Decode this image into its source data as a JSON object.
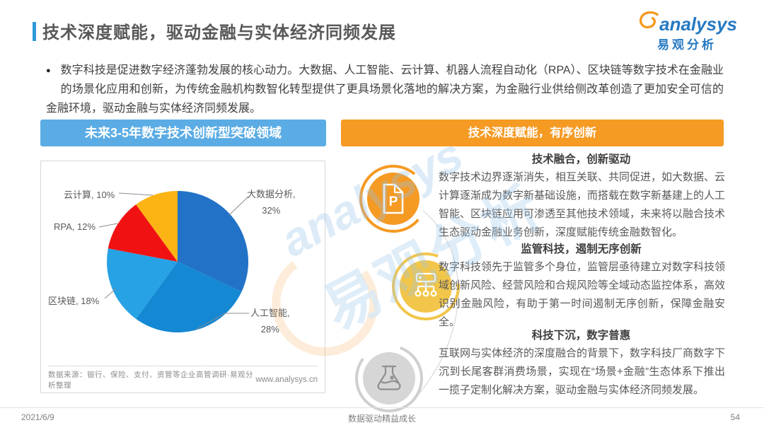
{
  "header": {
    "title": "技术深度赋能，驱动金融与实体经济同频发展"
  },
  "logo": {
    "brand": "analysys",
    "brand_cn": "易观分析"
  },
  "intro": {
    "bullet": "●",
    "text": "数字科技是促进数字经济蓬勃发展的核心动力。大数据、人工智能、云计算、机器人流程自动化（RPA）、区块链等数字技术在金融业的场景化应用和创新，为传统金融机构数智化转型提供了更具场景化落地的解决方案，为金融行业供给侧改革创造了更加安全可信的金融环境，驱动金融与实体经济同频发展。"
  },
  "left_panel": {
    "header": "未来3-5年数字技术创新型突破领域",
    "source": "数据来源：银行、保险、支付、资管等企业高管调研·易观分析整理",
    "website": "www.analysys.cn"
  },
  "chart_data": {
    "type": "pie",
    "title": "未来3-5年数字技术创新型突破领域",
    "labels": [
      "大数据分析",
      "人工智能",
      "区块链",
      "RPA",
      "云计算"
    ],
    "values": [
      32,
      28,
      18,
      12,
      10
    ],
    "unit": "%",
    "colors": [
      "#2273C7",
      "#1488D3",
      "#27A2E4",
      "#F01212",
      "#FBB414"
    ],
    "start_angle_deg": -90,
    "direction": "clockwise",
    "legend": "none",
    "label_format": "name, value%"
  },
  "right_panel": {
    "header": "技术深度赋能，有序创新",
    "sections": [
      {
        "icon": "document-p-icon",
        "icon_letter": "P",
        "title": "技术融合，创新驱动",
        "body": "数字技术边界逐渐消失，相互关联、共同促进，如大数据、云计算逐渐成为数字新基础设施，而搭载在数字新基建上的人工智能、区块链应用可渗透至其他技术领域，未来将以融合技术生态驱动金融业务创新，深度赋能传统金融数智化。"
      },
      {
        "icon": "network-icon",
        "title": "监管科技，遏制无序创新",
        "body": "数字科技领先于监管多个身位，监管层亟待建立对数字科技领域创新风险、经营风险和合规风险等全域动态监控体系，高效识别金融风险，有助于第一时间遏制无序创新，保障金融安全。"
      },
      {
        "icon": "flask-icon",
        "title": "科技下沉，数字普惠",
        "body": "互联网与实体经济的深度融合的背景下，数字科技厂商数字下沉到长尾客群消费场景，实现在“场景+金融”生态体系下推出一揽子定制化解决方案，驱动金融与实体经济同频发展。"
      }
    ]
  },
  "footer": {
    "date": "2021/6/9",
    "slogan": "数据驱动精益成长",
    "page": "54"
  }
}
